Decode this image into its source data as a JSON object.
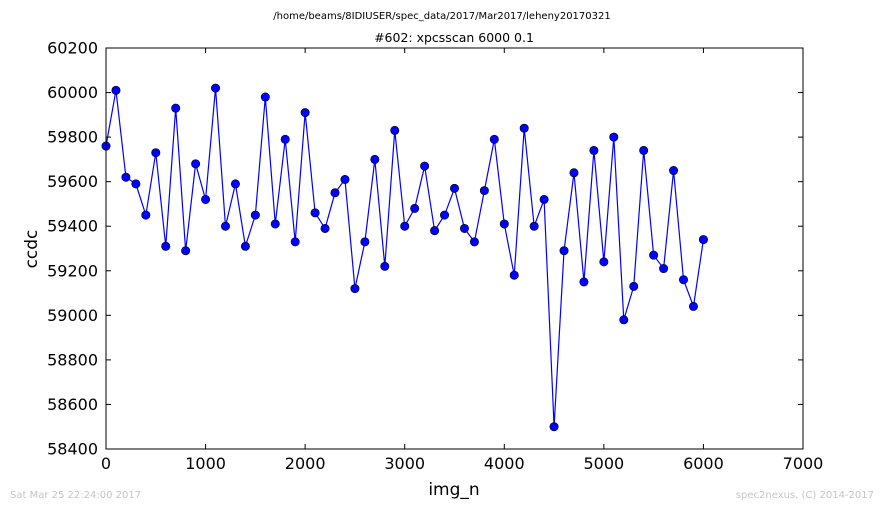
{
  "header": {
    "path": "/home/beams/8IDIUSER/spec_data/2017/Mar2017/leheny20170321",
    "title": "#602: xpcsscan 6000 0.1"
  },
  "footer": {
    "timestamp": "Sat Mar 25 22:24:00 2017",
    "credit": "spec2nexus, (C) 2014-2017"
  },
  "colors": {
    "series": "#0000ff",
    "marker_edge": "#000000",
    "axes": "#000000",
    "footer_text": "#c4c4c4"
  },
  "chart_data": {
    "type": "line",
    "title": "#602: xpcsscan 6000 0.1",
    "xlabel": "img_n",
    "ylabel": "ccdc",
    "xlim": [
      0,
      7000
    ],
    "ylim": [
      58400,
      60200
    ],
    "xticks": [
      0,
      1000,
      2000,
      3000,
      4000,
      5000,
      6000,
      7000
    ],
    "yticks": [
      58400,
      58600,
      58800,
      59000,
      59200,
      59400,
      59600,
      59800,
      60000,
      60200
    ],
    "xtick_labels": [
      "0",
      "1000",
      "2000",
      "3000",
      "4000",
      "5000",
      "6000",
      "7000"
    ],
    "ytick_labels": [
      "58400",
      "58600",
      "58800",
      "59000",
      "59200",
      "59400",
      "59600",
      "59800",
      "60000",
      "60200"
    ],
    "grid": false,
    "marker": "circle",
    "series": [
      {
        "x": [
          0,
          100,
          200,
          300,
          400,
          500,
          600,
          700,
          800,
          900,
          1000,
          1100,
          1200,
          1300,
          1400,
          1500,
          1600,
          1700,
          1800,
          1900,
          2000,
          2100,
          2200,
          2300,
          2400,
          2500,
          2600,
          2700,
          2800,
          2900,
          3000,
          3100,
          3200,
          3300,
          3400,
          3500,
          3600,
          3700,
          3800,
          3900,
          4000,
          4100,
          4200,
          4300,
          4400,
          4500,
          4600,
          4700,
          4800,
          4900,
          5000,
          5100,
          5200,
          5300,
          5400,
          5500,
          5600,
          5700,
          5800,
          5900,
          6000
        ],
        "y": [
          59760,
          60010,
          59620,
          59590,
          59450,
          59730,
          59310,
          59930,
          59290,
          59680,
          59520,
          60020,
          59400,
          59590,
          59310,
          59450,
          59980,
          59410,
          59790,
          59330,
          59910,
          59460,
          59390,
          59550,
          59610,
          59120,
          59330,
          59700,
          59220,
          59830,
          59400,
          59480,
          59670,
          59380,
          59450,
          59570,
          59390,
          59330,
          59560,
          59790,
          59410,
          59180,
          59840,
          59400,
          59520,
          58500,
          59290,
          59640,
          59150,
          59740,
          59240,
          59800,
          58980,
          59130,
          59740,
          59270,
          59210,
          59650,
          59160,
          59040,
          59340
        ]
      }
    ]
  }
}
